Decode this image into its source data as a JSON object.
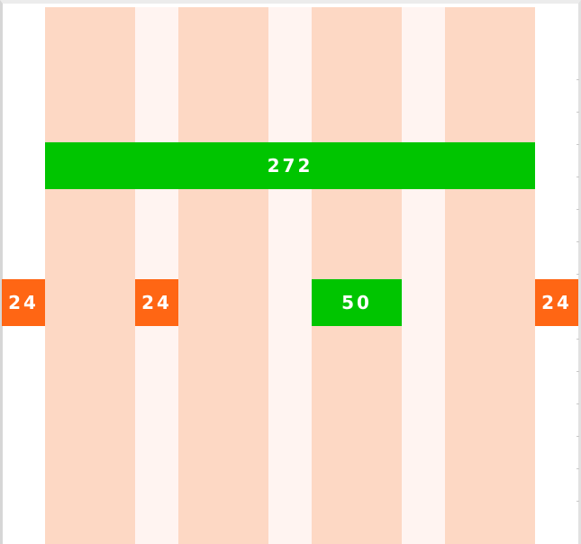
{
  "colors": {
    "column": "#fdd8c4",
    "gutter": "#fff4f1",
    "green": "#00c500",
    "orange": "#ff6614"
  },
  "measures": {
    "total_width": "272",
    "column_width": "50",
    "margin_left": "24",
    "gutter_width": "24",
    "margin_right": "24"
  }
}
